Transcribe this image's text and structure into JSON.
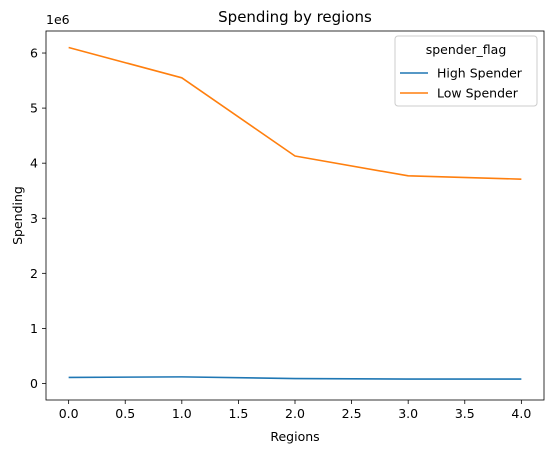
{
  "chart_data": {
    "type": "line",
    "title": "Spending by regions",
    "xlabel": "Regions",
    "ylabel": "Spending",
    "y_offset_label": "1e6",
    "xlim": [
      -0.2,
      4.2
    ],
    "ylim": [
      -0.3,
      6.4
    ],
    "x_ticks": [
      0.0,
      0.5,
      1.0,
      1.5,
      2.0,
      2.5,
      3.0,
      3.5,
      4.0
    ],
    "x_tick_labels": [
      "0.0",
      "0.5",
      "1.0",
      "1.5",
      "2.0",
      "2.5",
      "3.0",
      "3.5",
      "4.0"
    ],
    "y_ticks": [
      0,
      1,
      2,
      3,
      4,
      5,
      6
    ],
    "y_tick_labels": [
      "0",
      "1",
      "2",
      "3",
      "4",
      "5",
      "6"
    ],
    "grid": false,
    "legend": {
      "title": "spender_flag",
      "placement": "top-right"
    },
    "x": [
      0,
      1,
      2,
      3,
      4
    ],
    "series": [
      {
        "name": "High Spender",
        "color": "#1f77b4",
        "values": [
          0.11,
          0.12,
          0.09,
          0.08,
          0.08
        ]
      },
      {
        "name": "Low Spender",
        "color": "#ff7f0e",
        "values": [
          6.1,
          5.55,
          4.13,
          3.77,
          3.71
        ]
      }
    ]
  }
}
